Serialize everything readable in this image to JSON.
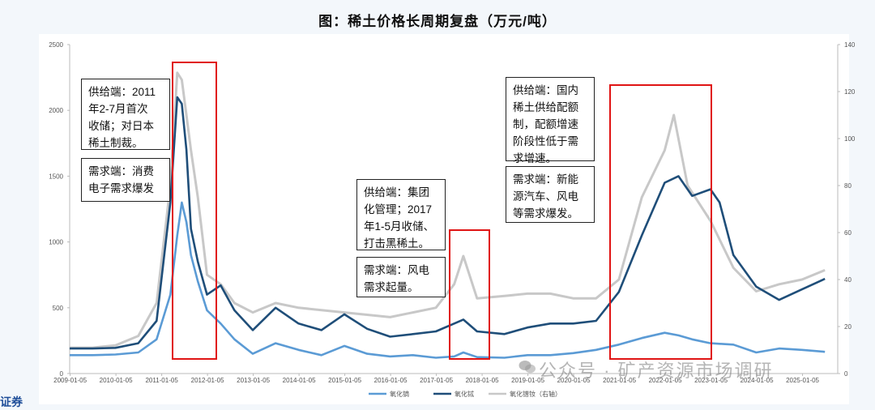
{
  "title": "图：稀土价格长周期复盘（万元/吨）",
  "chart_data": {
    "type": "line",
    "x_tick_labels": [
      "2009-01-05",
      "2010-01-05",
      "2011-01-05",
      "2012-01-05",
      "2013-01-05",
      "2014-01-05",
      "2015-01-05",
      "2016-01-05",
      "2017-01-05",
      "2018-01-05",
      "2019-01-05",
      "2020-01-05",
      "2021-01-05",
      "2022-01-05",
      "2023-01-05",
      "2024-01-05",
      "2025-01-05"
    ],
    "y_left_ticks": [
      "0",
      "500",
      "1000",
      "1500",
      "2000",
      "2500"
    ],
    "y_right_ticks": [
      "0",
      "20",
      "40",
      "60",
      "80",
      "100",
      "120",
      "140"
    ],
    "ylim_left": [
      0,
      2500
    ],
    "ylim_right": [
      0,
      140
    ],
    "series": [
      {
        "name": "氧化镝",
        "color": "#5b9bd5",
        "axis": "left",
        "x": [
          2009.0,
          2009.5,
          2010.0,
          2010.5,
          2010.9,
          2011.2,
          2011.35,
          2011.45,
          2011.55,
          2011.65,
          2011.8,
          2012.0,
          2012.3,
          2012.6,
          2013.0,
          2013.5,
          2014.0,
          2014.5,
          2015.0,
          2015.5,
          2016.0,
          2016.5,
          2017.0,
          2017.4,
          2017.6,
          2017.9,
          2018.5,
          2019.0,
          2019.5,
          2020.0,
          2020.5,
          2021.0,
          2021.5,
          2022.0,
          2022.3,
          2022.6,
          2023.0,
          2023.5,
          2024.0,
          2024.5,
          2025.0,
          2025.5
        ],
        "y": [
          140,
          140,
          145,
          160,
          260,
          600,
          1050,
          1300,
          1150,
          900,
          700,
          480,
          380,
          260,
          150,
          230,
          180,
          140,
          210,
          150,
          130,
          140,
          120,
          130,
          160,
          125,
          120,
          140,
          140,
          155,
          180,
          220,
          270,
          310,
          290,
          260,
          230,
          220,
          160,
          190,
          180,
          165
        ]
      },
      {
        "name": "氧化铽",
        "color": "#1f4e79",
        "axis": "left",
        "x": [
          2009.0,
          2009.5,
          2010.0,
          2010.5,
          2010.9,
          2011.2,
          2011.35,
          2011.45,
          2011.55,
          2011.65,
          2011.8,
          2012.0,
          2012.3,
          2012.6,
          2013.0,
          2013.5,
          2014.0,
          2014.5,
          2015.0,
          2015.5,
          2016.0,
          2016.5,
          2017.0,
          2017.4,
          2017.6,
          2017.9,
          2018.5,
          2019.0,
          2019.5,
          2020.0,
          2020.5,
          2021.0,
          2021.5,
          2022.0,
          2022.3,
          2022.6,
          2023.0,
          2023.2,
          2023.5,
          2024.0,
          2024.5,
          2025.0,
          2025.5
        ],
        "y": [
          190,
          190,
          195,
          230,
          400,
          1300,
          2100,
          2050,
          1700,
          1100,
          850,
          600,
          670,
          480,
          330,
          500,
          380,
          330,
          450,
          340,
          280,
          300,
          320,
          380,
          410,
          320,
          300,
          350,
          380,
          380,
          400,
          620,
          1050,
          1450,
          1500,
          1350,
          1400,
          1300,
          900,
          660,
          560,
          640,
          720
        ]
      },
      {
        "name": "氧化镨钕（右轴）",
        "color": "#c8c8c8",
        "axis": "right",
        "x": [
          2009.0,
          2009.5,
          2010.0,
          2010.5,
          2010.9,
          2011.2,
          2011.35,
          2011.45,
          2011.55,
          2011.65,
          2011.8,
          2012.0,
          2012.3,
          2012.6,
          2013.0,
          2013.5,
          2014.0,
          2014.5,
          2015.0,
          2015.5,
          2016.0,
          2016.5,
          2017.0,
          2017.4,
          2017.6,
          2017.9,
          2018.5,
          2019.0,
          2019.5,
          2020.0,
          2020.5,
          2021.0,
          2021.5,
          2022.0,
          2022.2,
          2022.5,
          2023.0,
          2023.5,
          2024.0,
          2024.5,
          2025.0,
          2025.5
        ],
        "y": [
          11,
          11,
          12,
          16,
          30,
          80,
          128,
          125,
          110,
          95,
          75,
          42,
          38,
          30,
          26,
          30,
          28,
          27,
          26,
          25,
          24,
          26,
          28,
          38,
          50,
          32,
          33,
          34,
          34,
          32,
          32,
          40,
          75,
          95,
          110,
          80,
          65,
          45,
          35,
          38,
          40,
          44
        ]
      }
    ]
  },
  "annotations": [
    {
      "lines": [
        "供给端：2011",
        "年2-7月首次",
        "收储；对日本",
        "稀土制裁。"
      ]
    },
    {
      "lines": [
        "需求端：消费",
        "电子需求爆发"
      ]
    },
    {
      "lines": [
        "供给端：集团",
        "化管理；2017",
        "年1-5月收储、",
        "打击黑稀土。"
      ]
    },
    {
      "lines": [
        "需求端：风电",
        "需求起量。"
      ]
    },
    {
      "lines": [
        "供给端：国内",
        "稀土供给配额",
        "制，配额增速",
        "阶段性低于需",
        "求增速。"
      ]
    },
    {
      "lines": [
        "需求端：新能",
        "源汽车、风电",
        "等需求爆发。"
      ]
    }
  ],
  "watermark": "公众号 · 矿产资源市场调研",
  "corner_text": "证券"
}
